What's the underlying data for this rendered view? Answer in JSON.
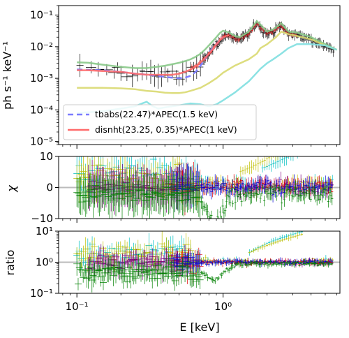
{
  "chart_data": [
    {
      "type": "line",
      "panel": "spectrum",
      "ylabel": "ph s⁻¹ keV⁻¹",
      "xscale": "log",
      "yscale": "log",
      "xlim": [
        0.075,
        6.3
      ],
      "ylim": [
        8e-06,
        0.2
      ],
      "yticks": [
        {
          "value": 1e-05,
          "label": "10⁻⁵"
        },
        {
          "value": 0.0001,
          "label": "10⁻⁴"
        },
        {
          "value": 0.001,
          "label": "10⁻³"
        },
        {
          "value": 0.01,
          "label": "10⁻²"
        },
        {
          "value": 0.1,
          "label": "10⁻¹"
        }
      ],
      "legend_position": "lower-left",
      "legend": [
        {
          "label": "tbabs(22.47)*APEC(1.5 keV)",
          "color": "#7b7bff",
          "dash": "dashed"
        },
        {
          "label": "disnht(23.25, 0.35)*APEC(1 keV)",
          "color": "#ff6b6b",
          "dash": "solid"
        }
      ],
      "series": [
        {
          "color": "#88c988",
          "x": [
            0.1,
            0.12,
            0.15,
            0.2,
            0.25,
            0.3,
            0.35,
            0.4,
            0.45,
            0.5,
            0.55,
            0.6,
            0.65,
            0.7,
            0.75,
            0.8,
            0.85,
            0.9,
            0.95,
            1.0,
            1.1,
            1.2,
            1.3,
            1.5,
            1.7,
            1.8,
            2.0,
            2.2,
            2.5,
            2.8,
            3.2,
            4.0,
            5.0,
            6.0
          ],
          "y": [
            0.0032,
            0.0031,
            0.0027,
            0.0023,
            0.0021,
            0.0021,
            0.0023,
            0.0025,
            0.0028,
            0.0031,
            0.0035,
            0.004,
            0.0048,
            0.006,
            0.008,
            0.011,
            0.015,
            0.02,
            0.027,
            0.032,
            0.028,
            0.022,
            0.02,
            0.03,
            0.065,
            0.05,
            0.03,
            0.035,
            0.055,
            0.03,
            0.028,
            0.02,
            0.012,
            0.008
          ]
        },
        {
          "color": "#7b7bff",
          "x": [
            0.1,
            0.15,
            0.2,
            0.25,
            0.3,
            0.35,
            0.4,
            0.45,
            0.5,
            0.55,
            0.6,
            0.65,
            0.7,
            0.75,
            0.8,
            0.85,
            0.9,
            0.95,
            1.0
          ],
          "y": [
            0.0019,
            0.0018,
            0.0016,
            0.0014,
            0.0013,
            0.0012,
            0.0011,
            0.00105,
            0.001,
            0.00105,
            0.0012,
            0.0016,
            0.0025,
            0.004,
            0.0065,
            0.009,
            0.012,
            0.016,
            0.02
          ]
        },
        {
          "color": "#ff6b6b",
          "x": [
            0.1,
            0.12,
            0.15,
            0.2,
            0.25,
            0.3,
            0.35,
            0.4,
            0.45,
            0.5,
            0.55,
            0.6,
            0.65,
            0.7,
            0.75,
            0.8,
            0.85,
            0.9,
            0.95,
            1.0,
            1.05,
            1.1
          ],
          "y": [
            0.0018,
            0.0018,
            0.0017,
            0.0016,
            0.0014,
            0.0013,
            0.0013,
            0.0013,
            0.0013,
            0.0014,
            0.0016,
            0.0019,
            0.0024,
            0.0032,
            0.0043,
            0.006,
            0.0085,
            0.012,
            0.016,
            0.02,
            0.022,
            0.023
          ]
        },
        {
          "color": "#d9d970",
          "x": [
            0.1,
            0.15,
            0.2,
            0.25,
            0.3,
            0.35,
            0.4,
            0.45,
            0.5,
            0.55,
            0.6,
            0.7,
            0.8,
            0.9,
            1.0,
            1.2,
            1.5,
            1.7,
            1.8,
            2.0,
            2.3,
            2.5,
            2.8,
            3.2,
            4.0,
            5.0,
            6.0
          ],
          "y": [
            0.0005,
            0.0005,
            0.00048,
            0.00045,
            0.0004,
            0.00038,
            0.00035,
            0.00034,
            0.00034,
            0.00036,
            0.0004,
            0.0005,
            0.0007,
            0.001,
            0.0015,
            0.0025,
            0.004,
            0.006,
            0.009,
            0.012,
            0.02,
            0.03,
            0.025,
            0.022,
            0.017,
            0.011,
            0.008
          ]
        },
        {
          "color": "#7fdfe0",
          "x": [
            0.1,
            0.15,
            0.2,
            0.25,
            0.28,
            0.3,
            0.33,
            0.36,
            0.4,
            0.45,
            0.5,
            0.6,
            0.7,
            0.8,
            0.9,
            1.0,
            1.2,
            1.5,
            1.7,
            1.8,
            2.0,
            2.2,
            2.5,
            2.8,
            3.2,
            4.0,
            5.0,
            6.0
          ],
          "y": [
            8e-05,
            9e-05,
            0.00011,
            0.00013,
            0.00016,
            0.00018,
            0.00013,
            0.00011,
            0.00012,
            0.00013,
            0.00014,
            0.00016,
            0.00015,
            0.00013,
            0.00015,
            0.0002,
            0.00035,
            0.0008,
            0.0015,
            0.002,
            0.003,
            0.004,
            0.006,
            0.009,
            0.012,
            0.012,
            0.011,
            0.008
          ]
        }
      ]
    },
    {
      "type": "scatter",
      "panel": "residuals",
      "ylabel": "χ",
      "xscale": "log",
      "ylim": [
        -10,
        10
      ],
      "yticks": [
        {
          "value": -10,
          "label": "−10"
        },
        {
          "value": 0,
          "label": "0"
        },
        {
          "value": 10,
          "label": "10"
        }
      ],
      "reference_line": 0
    },
    {
      "type": "scatter",
      "panel": "ratio",
      "ylabel": "ratio",
      "xlabel": "E [keV]",
      "xscale": "log",
      "yscale": "log",
      "ylim": [
        0.1,
        10
      ],
      "yticks": [
        {
          "value": 0.1,
          "label": "10⁻¹"
        },
        {
          "value": 1,
          "label": "10⁰"
        },
        {
          "value": 10,
          "label": "10¹"
        }
      ],
      "xticks": [
        {
          "value": 0.1,
          "label": "10⁻¹"
        },
        {
          "value": 1,
          "label": "10⁰"
        }
      ],
      "reference_line": 1
    }
  ]
}
